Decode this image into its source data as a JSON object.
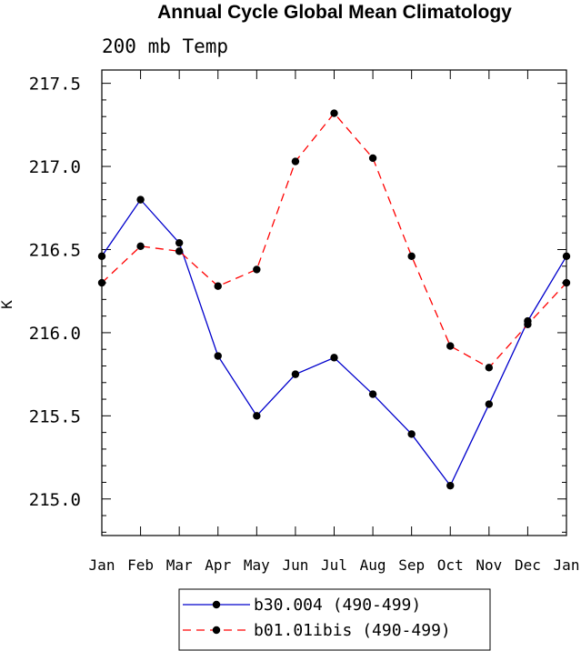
{
  "chart_data": {
    "type": "line",
    "title": "Annual Cycle Global Mean Climatology",
    "subtitle": "200 mb Temp",
    "xlabel": "",
    "ylabel": "K",
    "categories": [
      "Jan",
      "Feb",
      "Mar",
      "Apr",
      "May",
      "Jun",
      "Jul",
      "Aug",
      "Sep",
      "Oct",
      "Nov",
      "Dec",
      "Jan"
    ],
    "ylim": [
      214.78,
      217.58
    ],
    "yticks": [
      "215.0",
      "215.5",
      "216.0",
      "216.5",
      "217.0",
      "217.5"
    ],
    "grid": false,
    "legend_position": "bottom-center",
    "series": [
      {
        "name": "b30.004 (490-499)",
        "color": "#0000cc",
        "dash": "solid",
        "values": [
          216.46,
          216.8,
          216.54,
          215.86,
          215.5,
          215.75,
          215.85,
          215.63,
          215.39,
          215.08,
          215.57,
          216.07,
          216.46
        ]
      },
      {
        "name": "b01.01ibis (490-499)",
        "color": "#ff0000",
        "dash": "dashed",
        "values": [
          216.3,
          216.52,
          216.49,
          216.28,
          216.38,
          217.03,
          217.32,
          217.05,
          216.46,
          215.92,
          215.79,
          216.05,
          216.3
        ]
      }
    ]
  }
}
